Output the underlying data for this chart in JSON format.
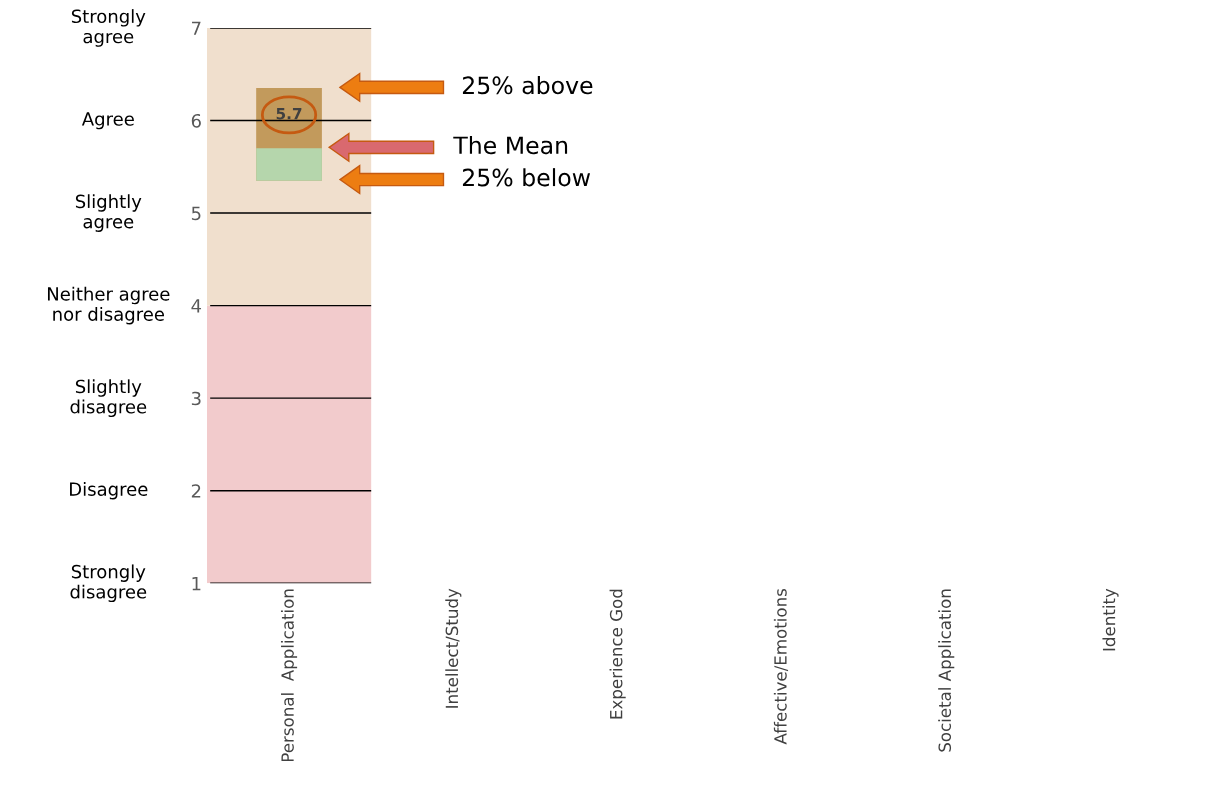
{
  "chart_data": {
    "type": "box",
    "categories": [
      "Personal  Application",
      "Intellect/Study",
      "Experience God",
      "Affective/Emotions",
      "Societal Application",
      "Identity"
    ],
    "series": [
      {
        "color": "#c29a5c",
        "colors": [
          "#b5d6ac",
          null,
          null,
          null,
          null,
          null
        ],
        "boxes": [
          {
            "low": 5.35,
            "q1": 5.35,
            "median": 5.7,
            "q3": 6.35,
            "high": 6.35
          },
          null,
          null,
          null,
          null,
          null
        ]
      }
    ],
    "ylim": [
      1,
      7
    ],
    "yticks": [
      1,
      2,
      3,
      4,
      5,
      6,
      7
    ],
    "bands": [
      {
        "axis": "y",
        "from": 1,
        "to": 4,
        "color": "#f2cbcc"
      },
      {
        "axis": "y",
        "from": 4,
        "to": 7,
        "color": "#f0dfcd"
      }
    ],
    "grid": "y",
    "annotations": [
      "Strongly\nagree",
      "Agree",
      "Slightly\nagree",
      "Neither agree\nnor disagree",
      "Slightly\ndisagree",
      "Disagree",
      "Strongly\ndisagree",
      {
        "text": "5.7",
        "x": "Personal  Application",
        "y": 5.7
      },
      "25% above",
      "The Mean",
      "25% below"
    ]
  }
}
